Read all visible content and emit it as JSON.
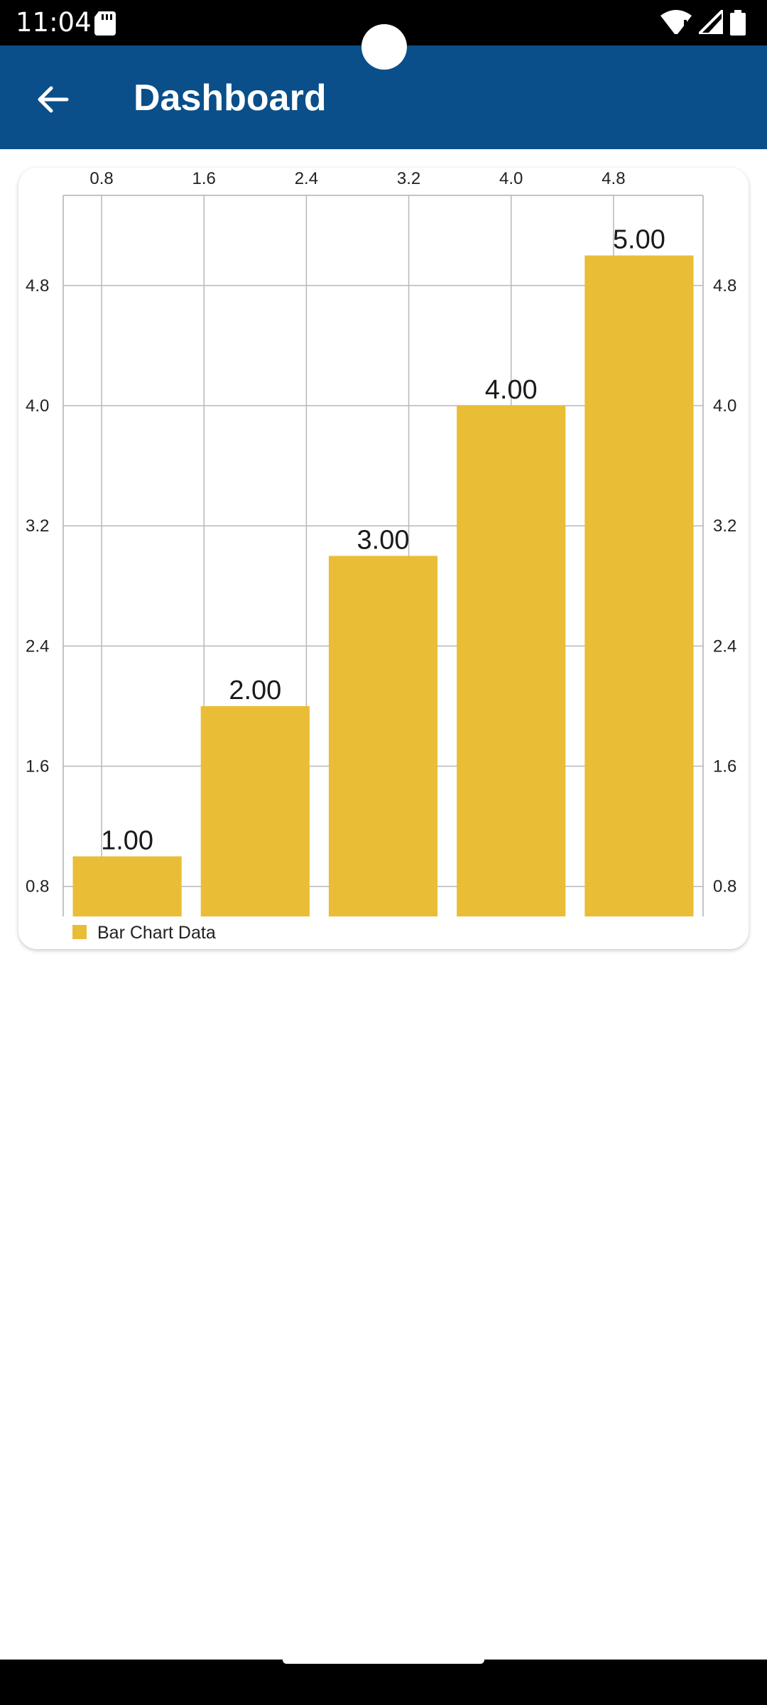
{
  "status_bar": {
    "time": "11:04",
    "icons": [
      "sd-card-icon",
      "wifi-icon",
      "signal-icon",
      "battery-icon"
    ]
  },
  "app_bar": {
    "title": "Dashboard",
    "back_icon": "arrow-left-icon",
    "color": "#0a4f8a"
  },
  "chart_data": {
    "type": "bar",
    "categories": [
      "1",
      "2",
      "3",
      "4",
      "5"
    ],
    "series": [
      {
        "name": "Bar Chart Data",
        "values": [
          1.0,
          2.0,
          3.0,
          4.0,
          5.0
        ]
      }
    ],
    "value_labels": [
      "1.00",
      "2.00",
      "3.00",
      "4.00",
      "5.00"
    ],
    "bar_color": "#e9bd36",
    "x_ticks": [
      "0.8",
      "1.6",
      "2.4",
      "3.2",
      "4.0",
      "4.8"
    ],
    "x_tick_values": [
      0.8,
      1.6,
      2.4,
      3.2,
      4.0,
      4.8
    ],
    "xlim": [
      0.5,
      5.5
    ],
    "y_ticks": [
      "0.8",
      "1.6",
      "2.4",
      "3.2",
      "4.0",
      "4.8"
    ],
    "y_tick_values": [
      0.8,
      1.6,
      2.4,
      3.2,
      4.0,
      4.8
    ],
    "ylim": [
      0.6,
      5.4
    ],
    "x_axis_position": "top",
    "y_axis_position": "left and right",
    "grid": true,
    "legend": {
      "position": "bottom-left",
      "label": "Bar Chart Data"
    }
  }
}
